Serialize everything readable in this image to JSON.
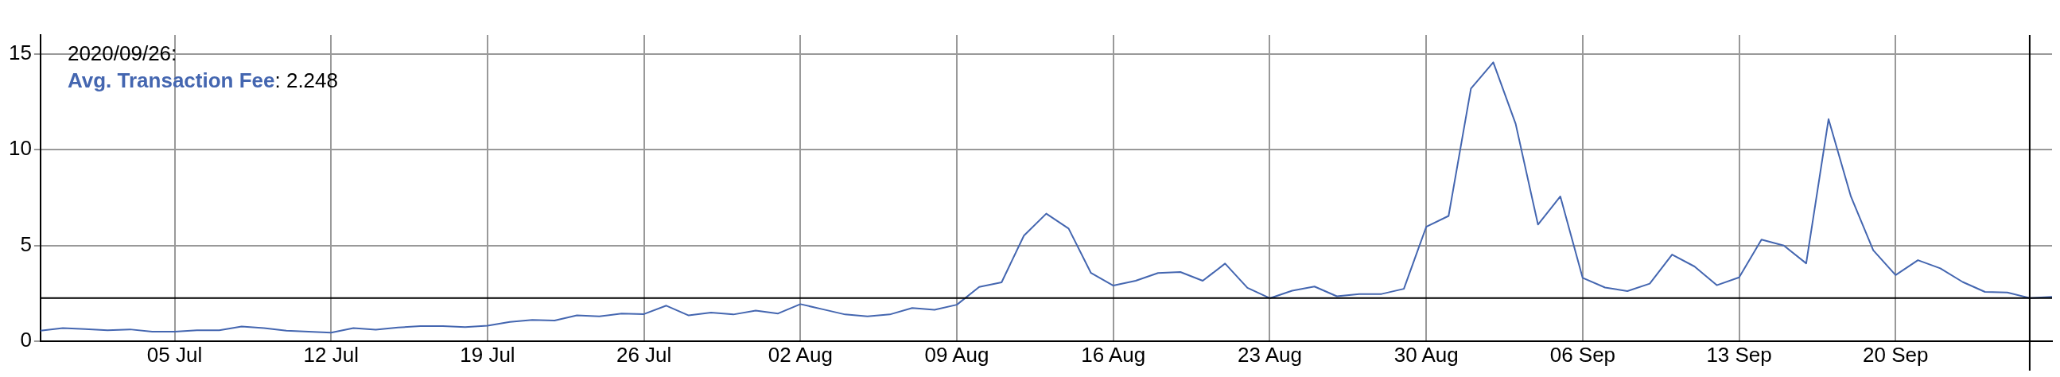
{
  "chart_data": {
    "type": "line",
    "x": [
      "2020-06-29",
      "2020-06-30",
      "2020-07-01",
      "2020-07-02",
      "2020-07-03",
      "2020-07-04",
      "2020-07-05",
      "2020-07-06",
      "2020-07-07",
      "2020-07-08",
      "2020-07-09",
      "2020-07-10",
      "2020-07-11",
      "2020-07-12",
      "2020-07-13",
      "2020-07-14",
      "2020-07-15",
      "2020-07-16",
      "2020-07-17",
      "2020-07-18",
      "2020-07-19",
      "2020-07-20",
      "2020-07-21",
      "2020-07-22",
      "2020-07-23",
      "2020-07-24",
      "2020-07-25",
      "2020-07-26",
      "2020-07-27",
      "2020-07-28",
      "2020-07-29",
      "2020-07-30",
      "2020-07-31",
      "2020-08-01",
      "2020-08-02",
      "2020-08-03",
      "2020-08-04",
      "2020-08-05",
      "2020-08-06",
      "2020-08-07",
      "2020-08-08",
      "2020-08-09",
      "2020-08-10",
      "2020-08-11",
      "2020-08-12",
      "2020-08-13",
      "2020-08-14",
      "2020-08-15",
      "2020-08-16",
      "2020-08-17",
      "2020-08-18",
      "2020-08-19",
      "2020-08-20",
      "2020-08-21",
      "2020-08-22",
      "2020-08-23",
      "2020-08-24",
      "2020-08-25",
      "2020-08-26",
      "2020-08-27",
      "2020-08-28",
      "2020-08-29",
      "2020-08-30",
      "2020-08-31",
      "2020-09-01",
      "2020-09-02",
      "2020-09-03",
      "2020-09-04",
      "2020-09-05",
      "2020-09-06",
      "2020-09-07",
      "2020-09-08",
      "2020-09-09",
      "2020-09-10",
      "2020-09-11",
      "2020-09-12",
      "2020-09-13",
      "2020-09-14",
      "2020-09-15",
      "2020-09-16",
      "2020-09-17",
      "2020-09-18",
      "2020-09-19",
      "2020-09-20",
      "2020-09-21",
      "2020-09-22",
      "2020-09-23",
      "2020-09-24",
      "2020-09-25",
      "2020-09-26",
      "2020-09-27"
    ],
    "series": [
      {
        "name": "Avg. Transaction Fee",
        "color": "#4466b0",
        "values": [
          0.54,
          0.68,
          0.63,
          0.56,
          0.61,
          0.49,
          0.49,
          0.56,
          0.56,
          0.76,
          0.68,
          0.54,
          0.49,
          0.44,
          0.68,
          0.59,
          0.71,
          0.78,
          0.78,
          0.73,
          0.8,
          1.0,
          1.1,
          1.07,
          1.34,
          1.29,
          1.44,
          1.41,
          1.85,
          1.34,
          1.49,
          1.39,
          1.59,
          1.44,
          1.93,
          1.66,
          1.39,
          1.29,
          1.39,
          1.73,
          1.63,
          1.9,
          2.83,
          3.07,
          5.51,
          6.66,
          5.88,
          3.56,
          2.9,
          3.15,
          3.56,
          3.61,
          3.15,
          4.05,
          2.78,
          2.24,
          2.63,
          2.85,
          2.34,
          2.46,
          2.46,
          2.73,
          5.97,
          6.54,
          13.2,
          14.57,
          11.36,
          6.09,
          7.56,
          3.3,
          2.8,
          2.61,
          3.0,
          4.52,
          3.9,
          2.92,
          3.33,
          5.3,
          4.99,
          4.06,
          11.6,
          7.56,
          4.75,
          3.45,
          4.23,
          3.8,
          3.09,
          2.57,
          2.54,
          2.25,
          2.31
        ]
      }
    ],
    "xlim": [
      "2020-06-29",
      "2020-09-27"
    ],
    "xticks": [
      {
        "value": "2020-07-05",
        "label": "05 Jul"
      },
      {
        "value": "2020-07-12",
        "label": "12 Jul"
      },
      {
        "value": "2020-07-19",
        "label": "19 Jul"
      },
      {
        "value": "2020-07-26",
        "label": "26 Jul"
      },
      {
        "value": "2020-08-02",
        "label": "02 Aug"
      },
      {
        "value": "2020-08-09",
        "label": "09 Aug"
      },
      {
        "value": "2020-08-16",
        "label": "16 Aug"
      },
      {
        "value": "2020-08-23",
        "label": "23 Aug"
      },
      {
        "value": "2020-08-30",
        "label": "30 Aug"
      },
      {
        "value": "2020-09-06",
        "label": "06 Sep"
      },
      {
        "value": "2020-09-13",
        "label": "13 Sep"
      },
      {
        "value": "2020-09-20",
        "label": "20 Sep"
      }
    ],
    "ylim": [
      0,
      16
    ],
    "yticks": [
      0,
      5,
      10,
      15
    ],
    "grid": true,
    "legend": "top left",
    "annotations": [
      "2020/09/26:",
      ": 2.248"
    ],
    "ref_lines": [
      {
        "axis": "x",
        "value": "2020-09-26",
        "color": "#000000"
      },
      {
        "axis": "y",
        "value": 2.248,
        "color": "#000000"
      }
    ]
  }
}
